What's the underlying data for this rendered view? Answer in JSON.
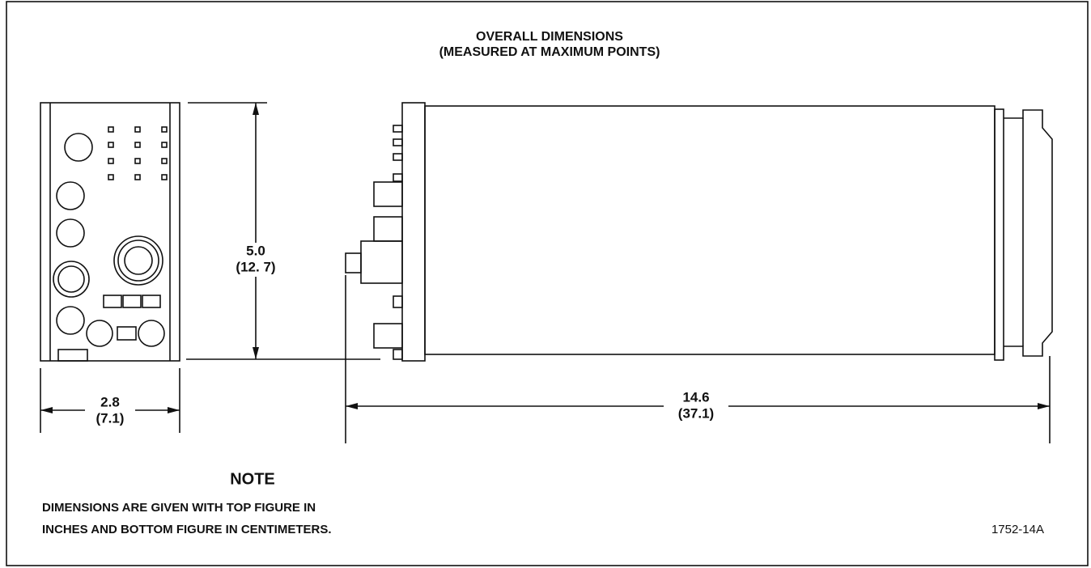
{
  "title": {
    "line1": "OVERALL DIMENSIONS",
    "line2": "(MEASURED AT MAXIMUM POINTS)"
  },
  "dimensions": {
    "height": {
      "top": "5.0",
      "bottom": "(12. 7)"
    },
    "width": {
      "top": "2.8",
      "bottom": "(7.1)"
    },
    "length": {
      "top": "14.6",
      "bottom": "(37.1)"
    }
  },
  "note": {
    "heading": "NOTE",
    "lines": [
      "DIMENSIONS ARE GIVEN WITH TOP FIGURE IN",
      "INCHES AND BOTTOM FIGURE IN CENTIMETERS."
    ]
  },
  "figure_id": "1752-14A"
}
